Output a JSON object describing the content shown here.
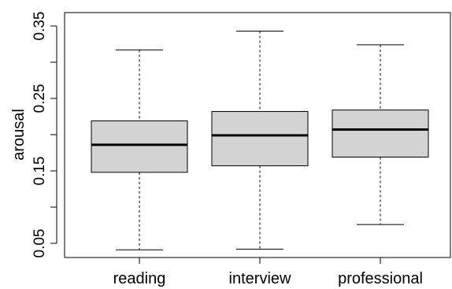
{
  "chart_data": {
    "type": "boxplot",
    "ylabel": "arousal",
    "ylim": [
      0.03,
      0.35
    ],
    "yticks": [
      {
        "value": 0.05,
        "label": "0.05"
      },
      {
        "value": 0.1,
        "label": ""
      },
      {
        "value": 0.15,
        "label": "0.15"
      },
      {
        "value": 0.2,
        "label": ""
      },
      {
        "value": 0.25,
        "label": "0.25"
      },
      {
        "value": 0.3,
        "label": ""
      },
      {
        "value": 0.35,
        "label": "0.35"
      }
    ],
    "categories": [
      "reading",
      "interview",
      "professional"
    ],
    "boxes": [
      {
        "name": "reading",
        "min": 0.041,
        "q1": 0.148,
        "median": 0.186,
        "q3": 0.219,
        "max": 0.317
      },
      {
        "name": "interview",
        "min": 0.042,
        "q1": 0.157,
        "median": 0.199,
        "q3": 0.232,
        "max": 0.343
      },
      {
        "name": "professional",
        "min": 0.076,
        "q1": 0.169,
        "median": 0.207,
        "q3": 0.234,
        "max": 0.324
      }
    ],
    "box_fill": "#d3d3d3",
    "line_color": "#000000",
    "grid": false
  }
}
